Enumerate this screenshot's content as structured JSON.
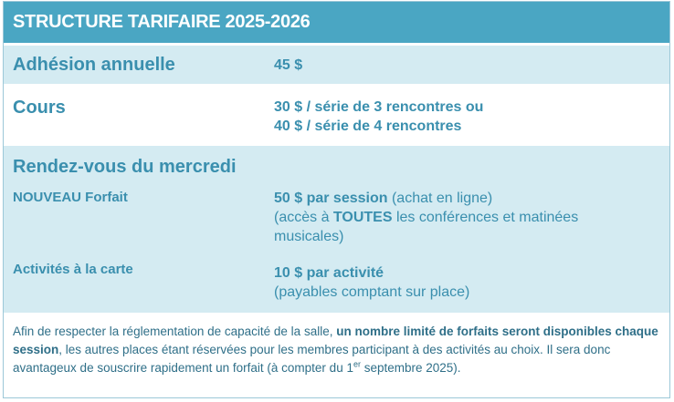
{
  "title": "STRUCTURE TARIFAIRE 2025-2026",
  "adhesion": {
    "label": "Adhésion annuelle",
    "value": "45 $"
  },
  "cours": {
    "label": "Cours",
    "line1": "30 $ / série de 3 rencontres ou",
    "line2": "40 $ / série de 4 rencontres"
  },
  "rdv": {
    "heading": "Rendez-vous du mercredi",
    "forfait": {
      "label": "NOUVEAU Forfait",
      "price": "50 $ par session",
      "price_note": " (achat en ligne)",
      "line2_a": "(accès à ",
      "line2_b": "TOUTES",
      "line2_c": " les conférences et matinées",
      "line3": "musicales)"
    },
    "carte": {
      "label": "Activités à la carte",
      "price": "10 $ par activité",
      "note": "(payables comptant sur place)"
    }
  },
  "notice": {
    "part1": "Afin de respecter la réglementation de capacité de la salle, ",
    "bold": "un nombre limité de forfaits seront disponibles chaque session",
    "part2": ", les autres places étant réservées pour les membres participant à des activités au choix. Il sera donc avantageux de souscrire rapidement un forfait (à compter du 1",
    "sup": "er",
    "part3": " septembre 2025)."
  }
}
